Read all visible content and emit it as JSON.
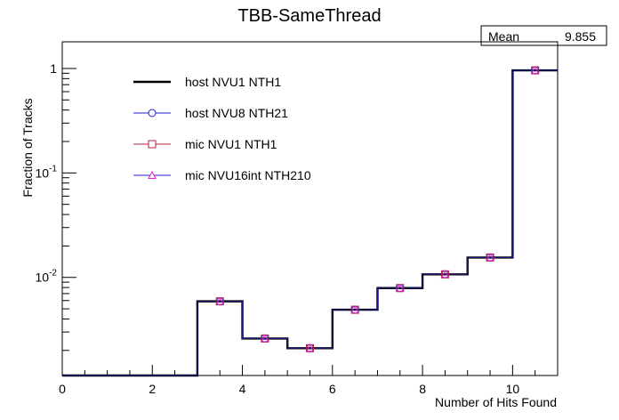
{
  "chart_data": {
    "type": "step-histogram",
    "title": "TBB-SameThread",
    "xlabel": "Number of Hits Found",
    "ylabel": "Fraction of Tracks",
    "xlim": [
      0,
      11
    ],
    "ylim_log": [
      0.00115,
      1.8
    ],
    "yscale": "log",
    "x_ticks": [
      0,
      2,
      4,
      6,
      8,
      10
    ],
    "y_ticks": [
      {
        "value": 1,
        "base": "1",
        "exp": ""
      },
      {
        "value": 0.1,
        "base": "10",
        "exp": "-1"
      },
      {
        "value": 0.01,
        "base": "10",
        "exp": "-2"
      }
    ],
    "bin_edges": [
      0,
      1,
      2,
      3,
      4,
      5,
      6,
      7,
      8,
      9,
      10,
      11
    ],
    "values": [
      0,
      0,
      0,
      0.0059,
      0.0026,
      0.0021,
      0.0049,
      0.0079,
      0.0107,
      0.0155,
      0.96
    ],
    "stats": {
      "label": "Mean",
      "value": "9.855"
    },
    "legend": [
      {
        "name": "host NVU1 NTH1",
        "marker": "line",
        "color": "#000000"
      },
      {
        "name": "host NVU8 NTH21",
        "marker": "circle",
        "color": "#1f1fcf"
      },
      {
        "name": "mic NVU1 NTH1",
        "marker": "square",
        "color": "#b0203a"
      },
      {
        "name": "mic NVU16int NTH210",
        "marker": "triangle",
        "color": "#e020c8"
      }
    ]
  }
}
